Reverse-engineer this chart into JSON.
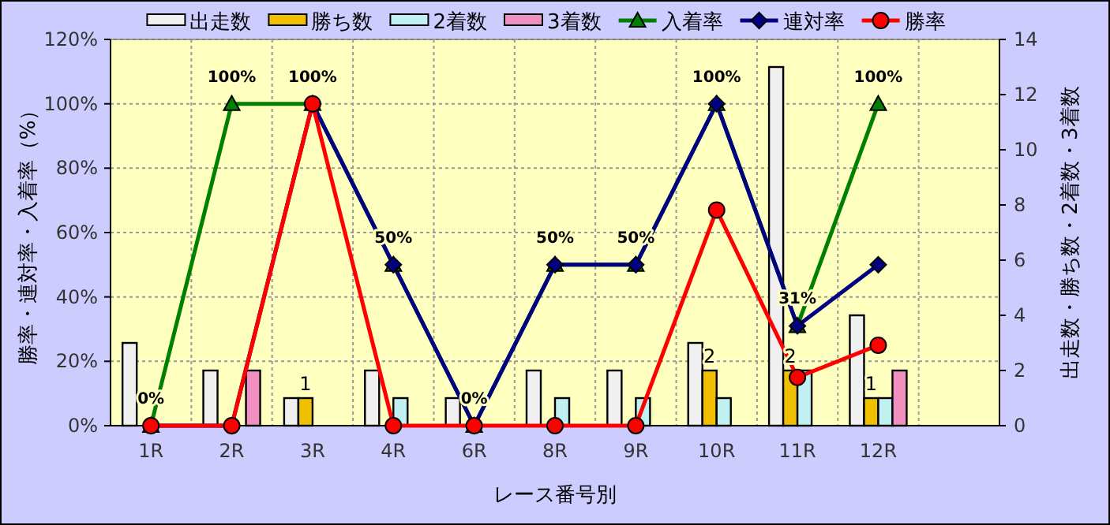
{
  "chart_data": {
    "type": "bar",
    "categories": [
      "1R",
      "2R",
      "3R",
      "4R",
      "6R",
      "8R",
      "9R",
      "10R",
      "11R",
      "12R",
      null
    ],
    "xlabel": "レース番号別",
    "ylabel": "勝率・連対率・入着率（%）",
    "y2label": "出走数・勝ち数・2着数・3着数",
    "series": [
      {
        "name": "出走数",
        "axis": "y2",
        "color": "#f0f0f0",
        "values": [
          3,
          2,
          1,
          2,
          1,
          2,
          2,
          3,
          13,
          4,
          null
        ]
      },
      {
        "name": "勝ち数",
        "axis": "y2",
        "color": "#f0c000",
        "values": [
          0,
          0,
          1,
          0,
          0,
          0,
          0,
          2,
          2,
          1,
          null
        ],
        "value_labels": [
          null,
          null,
          "1",
          null,
          null,
          null,
          null,
          "2",
          "2",
          "1",
          null
        ]
      },
      {
        "name": "2着数",
        "axis": "y2",
        "color": "#c0f0f0",
        "values": [
          0,
          0,
          0,
          1,
          0,
          1,
          1,
          1,
          2,
          1,
          null
        ]
      },
      {
        "name": "3着数",
        "axis": "y2",
        "color": "#f090c0",
        "values": [
          0,
          2,
          0,
          0,
          0,
          0,
          0,
          0,
          0,
          2,
          null
        ]
      },
      {
        "name": "入着率",
        "type": "line",
        "marker": "triangle",
        "color": "#008000",
        "values": [
          0,
          100,
          100,
          50,
          0,
          50,
          50,
          100,
          31,
          100,
          null
        ],
        "value_labels": [
          "0%",
          "100%",
          "100%",
          "50%",
          "0%",
          "50%",
          "50%",
          "100%",
          "31%",
          "100%",
          null
        ]
      },
      {
        "name": "連対率",
        "type": "line",
        "marker": "diamond",
        "color": "#000080",
        "values": [
          0,
          0,
          100,
          50,
          0,
          50,
          50,
          100,
          31,
          50,
          null
        ]
      },
      {
        "name": "勝率",
        "type": "line",
        "marker": "circle",
        "color": "#ff0000",
        "values": [
          0,
          0,
          100,
          0,
          0,
          0,
          0,
          67,
          15,
          25,
          null
        ]
      }
    ],
    "ylim": [
      0,
      120
    ],
    "yticks": [
      {
        "value": 0,
        "label": "0%"
      },
      {
        "value": 20,
        "label": "20%"
      },
      {
        "value": 40,
        "label": "40%"
      },
      {
        "value": 60,
        "label": "60%"
      },
      {
        "value": 80,
        "label": "80%"
      },
      {
        "value": 100,
        "label": "100%"
      },
      {
        "value": 120,
        "label": "120%"
      }
    ],
    "y2lim": [
      0,
      14
    ],
    "y2ticks": [
      0,
      2,
      4,
      6,
      8,
      10,
      12,
      14
    ],
    "grid": true,
    "legend": "top"
  }
}
